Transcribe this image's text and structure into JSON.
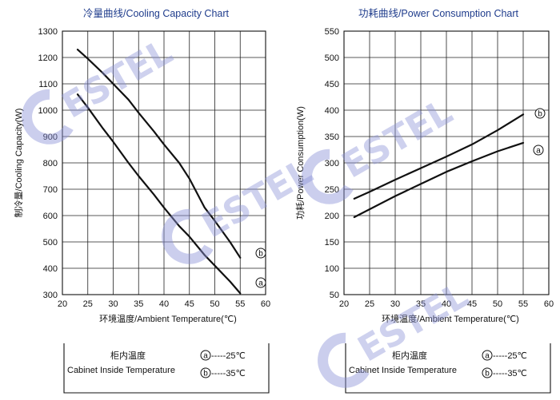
{
  "watermark": {
    "text": "ESTEL"
  },
  "chart_data": [
    {
      "type": "line",
      "title": "冷量曲线/Cooling Capacity Chart",
      "xlabel": "环境温度/Ambient Temperature(℃)",
      "ylabel": "制冷量/Cooling Capacity(W)",
      "xlim": [
        20,
        60
      ],
      "ylim": [
        300,
        1300
      ],
      "xticks": [
        20,
        25,
        30,
        35,
        40,
        45,
        50,
        55,
        60
      ],
      "yticks": [
        300,
        400,
        500,
        600,
        700,
        800,
        900,
        1000,
        1100,
        1200,
        1300
      ],
      "grid": true,
      "series": [
        {
          "name": "b",
          "x": [
            23,
            25,
            28,
            30,
            33,
            35,
            38,
            40,
            43,
            45,
            48,
            50,
            53,
            55
          ],
          "y": [
            1230,
            1195,
            1140,
            1100,
            1040,
            990,
            920,
            870,
            800,
            740,
            630,
            580,
            500,
            440
          ]
        },
        {
          "name": "a",
          "x": [
            23,
            25,
            28,
            30,
            33,
            35,
            38,
            40,
            43,
            45,
            48,
            50,
            53,
            55
          ],
          "y": [
            1060,
            1010,
            930,
            880,
            800,
            750,
            680,
            630,
            560,
            520,
            450,
            410,
            350,
            305
          ]
        }
      ],
      "legend": {
        "title": "柜内温度",
        "subtitle": "Cabinet Inside Temperature",
        "items": [
          {
            "marker": "a",
            "label": "-----25℃"
          },
          {
            "marker": "b",
            "label": "-----35℃"
          }
        ]
      }
    },
    {
      "type": "line",
      "title": "功耗曲线/Power Consumption Chart",
      "xlabel": "环境温度/Ambient Temperature(℃)",
      "ylabel": "功耗/Power Consumption(W)",
      "xlim": [
        20,
        60
      ],
      "ylim": [
        50,
        550
      ],
      "xticks": [
        20,
        25,
        30,
        35,
        40,
        45,
        50,
        55,
        60
      ],
      "yticks": [
        50,
        100,
        150,
        200,
        250,
        300,
        350,
        400,
        450,
        500,
        550
      ],
      "grid": true,
      "series": [
        {
          "name": "b",
          "x": [
            22,
            25,
            30,
            35,
            40,
            45,
            50,
            55
          ],
          "y": [
            232,
            245,
            268,
            290,
            312,
            335,
            362,
            392
          ]
        },
        {
          "name": "a",
          "x": [
            22,
            25,
            30,
            35,
            40,
            45,
            50,
            55
          ],
          "y": [
            197,
            212,
            237,
            260,
            283,
            303,
            322,
            338
          ]
        }
      ],
      "legend": {
        "title": "柜内温度",
        "subtitle": "Cabinet Inside Temperature",
        "items": [
          {
            "marker": "a",
            "label": "-----25℃"
          },
          {
            "marker": "b",
            "label": "-----35℃"
          }
        ]
      }
    }
  ]
}
